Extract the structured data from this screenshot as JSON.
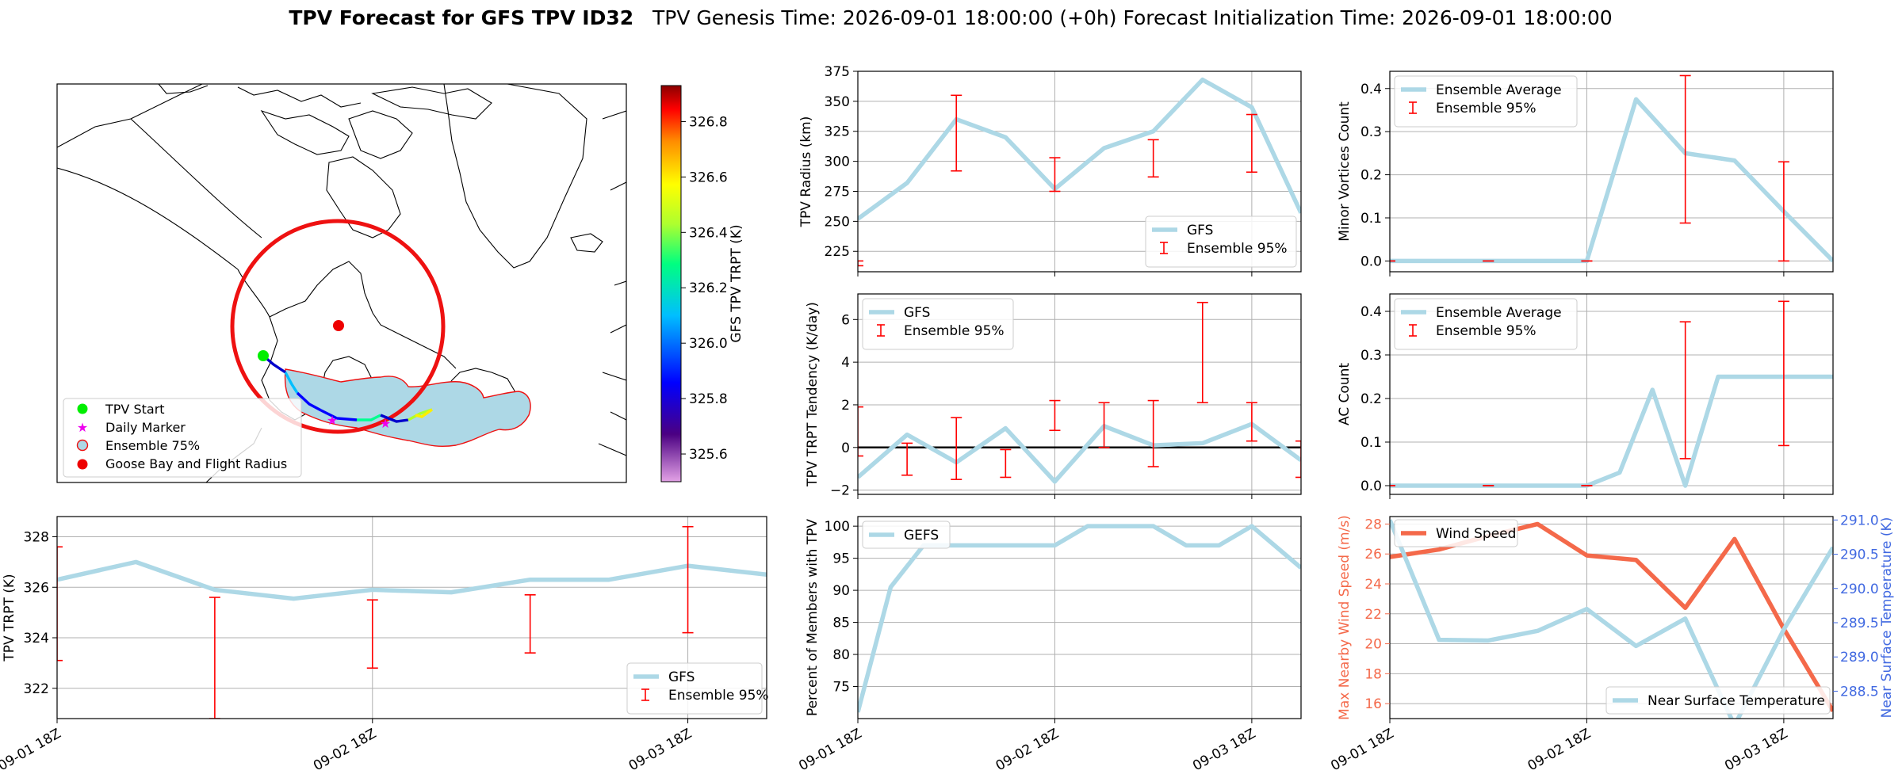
{
  "figure": {
    "title_bold": "TPV Forecast for GFS TPV ID32",
    "title_rest": "TPV Genesis Time: 2026-09-01 18:00:00 (+0h)   Forecast Initialization Time: 2026-09-01 18:00:00"
  },
  "colors": {
    "series_blue": "#add8e6",
    "errorbar_red": "#ff0000",
    "wind_red": "#f4694a",
    "temp_axis_blue": "#4169e1",
    "circle_red": "#ee1111",
    "start_green": "#00ee00",
    "daily_magenta": "#ee00ee"
  },
  "time_ticks": [
    "09-01 18Z",
    "09-02 18Z",
    "09-03 18Z"
  ],
  "map": {
    "colorbar_label": "GFS TPV TRPT (K)",
    "colorbar_ticks": [
      "325.6",
      "325.8",
      "326.0",
      "326.2",
      "326.4",
      "326.6",
      "326.8"
    ],
    "colorbar_range": [
      325.5,
      326.93
    ],
    "legend": [
      "TPV Start",
      "Daily Marker",
      "Ensemble 75%",
      "Goose Bay and Flight Radius"
    ]
  },
  "chart_data": [
    {
      "id": "trpt",
      "type": "line",
      "ylabel": "TPV TRPT (K)",
      "xlim": [
        0,
        13.5
      ],
      "ylim": [
        320.8,
        328.8
      ],
      "yticks": [
        322,
        324,
        326,
        328
      ],
      "series": [
        {
          "name": "GFS",
          "x": [
            0,
            1.5,
            3,
            4.5,
            6,
            7.5,
            9,
            10.5,
            12,
            13.5
          ],
          "values": [
            326.3,
            327.0,
            325.9,
            325.55,
            325.9,
            325.8,
            326.3,
            326.3,
            326.85,
            326.5
          ]
        },
        {
          "name": "Ensemble 95%",
          "type": "errorbar",
          "x": [
            0,
            3,
            6,
            9,
            12
          ],
          "low": [
            323.1,
            320.8,
            322.8,
            323.4,
            324.2
          ],
          "high": [
            327.6,
            325.6,
            325.5,
            325.7,
            328.4
          ]
        }
      ]
    },
    {
      "id": "radius",
      "type": "line",
      "ylabel": "TPV Radius (km)",
      "xlim": [
        0,
        13.5
      ],
      "ylim": [
        208,
        375
      ],
      "yticks": [
        225,
        250,
        275,
        300,
        325,
        350,
        375
      ],
      "series": [
        {
          "name": "GFS",
          "x": [
            0,
            1.5,
            3,
            4.5,
            6,
            7.5,
            9,
            10.5,
            12,
            13.5
          ],
          "values": [
            252,
            282,
            335,
            320,
            277,
            311,
            325,
            368,
            345,
            257
          ]
        },
        {
          "name": "Ensemble 95%",
          "type": "errorbar",
          "x": [
            0,
            3,
            6,
            9,
            12
          ],
          "low": [
            213,
            292,
            275,
            287,
            291
          ],
          "high": [
            217,
            355,
            303,
            318,
            339
          ]
        }
      ]
    },
    {
      "id": "tendency",
      "type": "line",
      "ylabel": "TPV TRPT Tendency (K/day)",
      "xlim": [
        0,
        13.5
      ],
      "ylim": [
        -2.2,
        7.2
      ],
      "yticks": [
        -2,
        0,
        2,
        4,
        6
      ],
      "series": [
        {
          "name": "GFS",
          "x": [
            0,
            1.5,
            3,
            4.5,
            6,
            7.5,
            9,
            10.5,
            12,
            13.5
          ],
          "values": [
            -1.4,
            0.6,
            -0.7,
            0.9,
            -1.6,
            1.0,
            0.1,
            0.2,
            1.1,
            -0.6
          ]
        },
        {
          "name": "Ensemble 95%",
          "type": "errorbar",
          "x": [
            0,
            1.5,
            3,
            4.5,
            6,
            7.5,
            9,
            10.5,
            12,
            13.5
          ],
          "low": [
            -0.4,
            -1.3,
            -1.5,
            -1.4,
            0.8,
            0.0,
            -0.9,
            2.1,
            0.3,
            -1.4
          ],
          "high": [
            1.9,
            0.2,
            1.4,
            -0.1,
            2.2,
            2.1,
            2.2,
            6.8,
            2.1,
            0.3
          ]
        }
      ]
    },
    {
      "id": "members",
      "type": "line",
      "ylabel": "Percent of Members with TPV",
      "xlim": [
        0,
        13.5
      ],
      "ylim": [
        70,
        101.5
      ],
      "yticks": [
        75,
        80,
        85,
        90,
        95,
        100
      ],
      "series": [
        {
          "name": "GEFS",
          "x": [
            0,
            1,
            2,
            3,
            4,
            5,
            6,
            7,
            8,
            9,
            10,
            11,
            12,
            13.5
          ],
          "values": [
            71,
            90.5,
            97,
            97,
            97,
            97,
            97,
            100,
            100,
            100,
            97,
            97,
            100,
            93.5
          ]
        }
      ]
    },
    {
      "id": "minor",
      "type": "line",
      "ylabel": "Minor Vortices Count",
      "xlim": [
        0,
        13.5
      ],
      "ylim": [
        -0.025,
        0.44
      ],
      "yticks": [
        0.0,
        0.1,
        0.2,
        0.3,
        0.4
      ],
      "series": [
        {
          "name": "Ensemble Average",
          "x": [
            0,
            1.5,
            3,
            4.5,
            6,
            7.5,
            9,
            10.5,
            12,
            13.5
          ],
          "values": [
            0,
            0,
            0,
            0,
            0,
            0.375,
            0.25,
            0.233,
            0.115,
            0
          ]
        },
        {
          "name": "Ensemble 95%",
          "type": "errorbar",
          "x": [
            0,
            3,
            6,
            9,
            12
          ],
          "low": [
            0,
            0,
            0,
            0.088,
            0
          ],
          "high": [
            0,
            0,
            0,
            0.43,
            0.23
          ]
        }
      ]
    },
    {
      "id": "ac",
      "type": "line",
      "ylabel": "AC Count",
      "xlim": [
        0,
        13.5
      ],
      "ylim": [
        -0.02,
        0.44
      ],
      "yticks": [
        0.0,
        0.1,
        0.2,
        0.3,
        0.4
      ],
      "series": [
        {
          "name": "Ensemble Average",
          "x": [
            0,
            1.5,
            3,
            4.5,
            6,
            7,
            8,
            9,
            10,
            11,
            12,
            13.5
          ],
          "values": [
            0,
            0,
            0,
            0,
            0,
            0.03,
            0.22,
            0,
            0.25,
            0.25,
            0.25,
            0.25
          ]
        },
        {
          "name": "Ensemble 95%",
          "type": "errorbar",
          "x": [
            0,
            3,
            6,
            9,
            12
          ],
          "low": [
            0,
            0,
            0,
            0.062,
            0.092
          ],
          "high": [
            0,
            0,
            0,
            0.376,
            0.423
          ]
        }
      ]
    },
    {
      "id": "wind",
      "type": "line",
      "ylabel": "Max Nearby Wind Speed (m/s)",
      "ylabel_right": "Near Surface Temperature (K)",
      "xlim": [
        0,
        13.5
      ],
      "ylim": [
        15,
        28.5
      ],
      "yticks": [
        16,
        18,
        20,
        22,
        24,
        26,
        28
      ],
      "ylim_right": [
        288.1,
        291.05
      ],
      "yticks_right": [
        288.5,
        289.0,
        289.5,
        290.0,
        290.5,
        291.0
      ],
      "yticks_right_labels": [
        "288.5",
        "289.0",
        "289.5",
        "290.0",
        "290.5",
        "291.0"
      ],
      "series": [
        {
          "name": "Wind Speed",
          "axis": "left",
          "x": [
            0,
            1.5,
            3,
            4.5,
            6,
            7.5,
            9,
            10.5,
            12,
            13.5
          ],
          "values": [
            25.8,
            26.3,
            27.2,
            28.0,
            25.9,
            25.6,
            22.4,
            27.0,
            21.0,
            15.5
          ]
        },
        {
          "name": "Near Surface Temperature",
          "axis": "right",
          "x": [
            0,
            1.5,
            3,
            4.5,
            6,
            7.5,
            9,
            10.5,
            12,
            13.5
          ],
          "values": [
            291.0,
            289.25,
            289.24,
            289.38,
            289.7,
            289.16,
            289.56,
            288.0,
            289.4,
            290.6
          ]
        }
      ]
    }
  ]
}
